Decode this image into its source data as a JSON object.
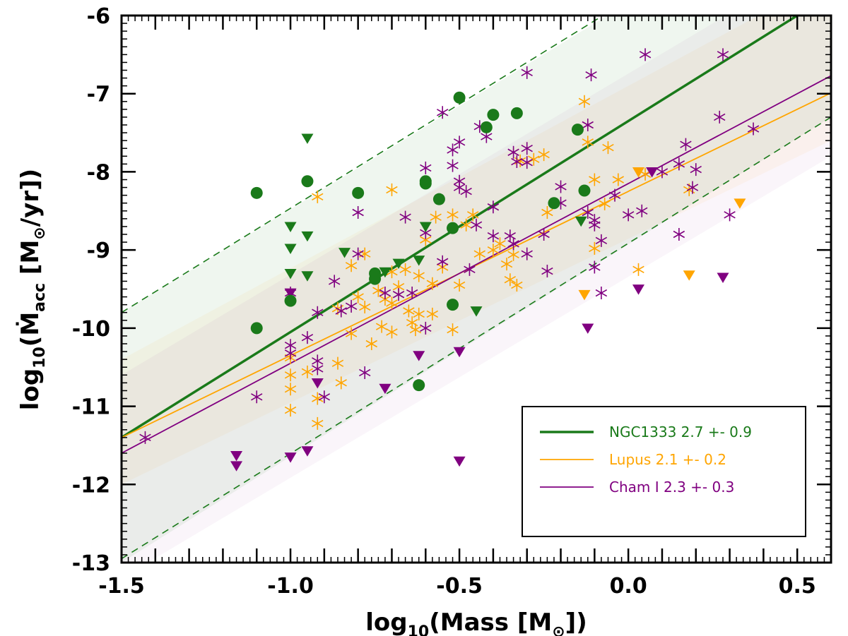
{
  "chart_data": {
    "type": "scatter",
    "title": "",
    "xlabel": {
      "prefix": "log",
      "sub": "10",
      "main": "(Mass [M",
      "sun": "⊙",
      "close": "])"
    },
    "ylabel": {
      "prefix": "log",
      "sub": "10",
      "main": "(Ṁ",
      "accsub": "acc",
      "unit": " [M",
      "sun": "⊙",
      "close": "/yr])"
    },
    "xlim": [
      -1.5,
      0.6
    ],
    "ylim": [
      -13,
      -6
    ],
    "xticks": [
      {
        "v": -1.5,
        "label": "-1.5"
      },
      {
        "v": -1.0,
        "label": "-1.0"
      },
      {
        "v": -0.5,
        "label": "-0.5"
      },
      {
        "v": 0.0,
        "label": "0.0"
      },
      {
        "v": 0.5,
        "label": "0.5"
      }
    ],
    "yticks": [
      {
        "v": -6,
        "label": "-6"
      },
      {
        "v": -7,
        "label": "-7"
      },
      {
        "v": -8,
        "label": "-8"
      },
      {
        "v": -9,
        "label": "-9"
      },
      {
        "v": -10,
        "label": "-10"
      },
      {
        "v": -11,
        "label": "-11"
      },
      {
        "v": -12,
        "label": "-12"
      },
      {
        "v": -13,
        "label": "-13"
      }
    ],
    "grid": false,
    "legend_position": "lower-right",
    "colors": {
      "ngc1333": "#1a7a1a",
      "lupus": "#ffa500",
      "cham": "#800080"
    },
    "bands": [
      {
        "color": "#1a7a1a",
        "opacity": 0.07,
        "lower": [
          -1.5,
          -13.0
        ],
        "lower_end": [
          0.6,
          -7.3
        ],
        "upper": [
          0.6,
          -4.25
        ],
        "upper_start": [
          -1.5,
          -9.8
        ]
      },
      {
        "color": "#ffa500",
        "opacity": 0.05,
        "lower": [
          -1.5,
          -12.0
        ],
        "lower_end": [
          0.6,
          -7.6
        ],
        "upper": [
          0.6,
          -5.5
        ],
        "upper_start": [
          -1.5,
          -10.4
        ]
      },
      {
        "color": "#800080",
        "opacity": 0.04,
        "lower": [
          -1.5,
          -13.2
        ],
        "lower_end": [
          0.6,
          -7.8
        ],
        "upper": [
          0.6,
          -5.2
        ],
        "upper_start": [
          -1.5,
          -10.6
        ]
      }
    ],
    "dashed_lines": [
      {
        "x1": -1.5,
        "y1": -9.8,
        "x2": 0.6,
        "y2": -4.2
      },
      {
        "x1": -1.5,
        "y1": -12.95,
        "x2": 0.6,
        "y2": -7.3
      }
    ],
    "fit_lines": [
      {
        "name": "NGC1333",
        "color": "#1a7a1a",
        "width": 3.5,
        "x1": -1.5,
        "y1": -11.4,
        "x2": 0.6,
        "y2": -5.73
      },
      {
        "name": "Lupus",
        "color": "#ffa500",
        "width": 1.8,
        "x1": -1.5,
        "y1": -11.4,
        "x2": 0.6,
        "y2": -6.99
      },
      {
        "name": "Cham I",
        "color": "#800080",
        "width": 1.8,
        "x1": -1.5,
        "y1": -11.6,
        "x2": 0.6,
        "y2": -6.77
      }
    ],
    "legend": [
      {
        "label": "NGC1333  2.7 +- 0.9",
        "color": "#1a7a1a",
        "width": 3.5
      },
      {
        "label": "Lupus  2.1 +- 0.2",
        "color": "#ffa500",
        "width": 1.8
      },
      {
        "label": "Cham I  2.3 +- 0.3",
        "color": "#800080",
        "width": 1.8
      }
    ],
    "series": [
      {
        "group": "ngc1333",
        "marker": "circle",
        "points": [
          [
            -1.1,
            -8.27
          ],
          [
            -1.1,
            -10.0
          ],
          [
            -1.0,
            -9.65
          ],
          [
            -0.95,
            -8.12
          ],
          [
            -0.8,
            -8.27
          ],
          [
            -0.75,
            -9.3
          ],
          [
            -0.75,
            -9.37
          ],
          [
            -0.62,
            -10.73
          ],
          [
            -0.6,
            -8.12
          ],
          [
            -0.6,
            -8.15
          ],
          [
            -0.56,
            -8.35
          ],
          [
            -0.52,
            -8.72
          ],
          [
            -0.52,
            -9.7
          ],
          [
            -0.5,
            -7.05
          ],
          [
            -0.42,
            -7.43
          ],
          [
            -0.4,
            -7.27
          ],
          [
            -0.33,
            -7.25
          ],
          [
            -0.22,
            -8.4
          ],
          [
            -0.15,
            -7.46
          ],
          [
            -0.13,
            -8.24
          ]
        ]
      },
      {
        "group": "ngc1333",
        "marker": "triangle",
        "points": [
          [
            -1.0,
            -8.7
          ],
          [
            -1.0,
            -8.98
          ],
          [
            -1.0,
            -9.3
          ],
          [
            -0.95,
            -7.57
          ],
          [
            -0.95,
            -8.82
          ],
          [
            -0.95,
            -9.33
          ],
          [
            -0.84,
            -9.03
          ],
          [
            -0.72,
            -9.28
          ],
          [
            -0.68,
            -9.17
          ],
          [
            -0.62,
            -9.13
          ],
          [
            -0.6,
            -8.7
          ],
          [
            -0.45,
            -9.78
          ],
          [
            -0.14,
            -8.63
          ]
        ]
      },
      {
        "group": "lupus",
        "marker": "star",
        "points": [
          [
            -1.0,
            -10.38
          ],
          [
            -1.0,
            -10.6
          ],
          [
            -1.0,
            -10.78
          ],
          [
            -1.0,
            -11.05
          ],
          [
            -0.95,
            -10.56
          ],
          [
            -0.92,
            -8.32
          ],
          [
            -0.92,
            -10.9
          ],
          [
            -0.92,
            -11.22
          ],
          [
            -0.86,
            -9.75
          ],
          [
            -0.86,
            -10.45
          ],
          [
            -0.85,
            -10.7
          ],
          [
            -0.82,
            -9.2
          ],
          [
            -0.82,
            -10.07
          ],
          [
            -0.8,
            -9.6
          ],
          [
            -0.78,
            -9.05
          ],
          [
            -0.78,
            -9.73
          ],
          [
            -0.76,
            -10.2
          ],
          [
            -0.74,
            -9.52
          ],
          [
            -0.73,
            -9.98
          ],
          [
            -0.72,
            -9.63
          ],
          [
            -0.7,
            -8.23
          ],
          [
            -0.7,
            -9.28
          ],
          [
            -0.7,
            -9.68
          ],
          [
            -0.7,
            -10.05
          ],
          [
            -0.68,
            -9.47
          ],
          [
            -0.66,
            -9.25
          ],
          [
            -0.65,
            -9.78
          ],
          [
            -0.64,
            -9.93
          ],
          [
            -0.63,
            -10.02
          ],
          [
            -0.62,
            -9.82
          ],
          [
            -0.62,
            -9.33
          ],
          [
            -0.6,
            -8.87
          ],
          [
            -0.58,
            -9.43
          ],
          [
            -0.58,
            -9.82
          ],
          [
            -0.57,
            -8.58
          ],
          [
            -0.55,
            -9.22
          ],
          [
            -0.52,
            -8.55
          ],
          [
            -0.52,
            -10.02
          ],
          [
            -0.5,
            -9.45
          ],
          [
            -0.48,
            -8.68
          ],
          [
            -0.46,
            -8.55
          ],
          [
            -0.44,
            -9.05
          ],
          [
            -0.4,
            -9.0
          ],
          [
            -0.38,
            -8.92
          ],
          [
            -0.36,
            -9.18
          ],
          [
            -0.35,
            -9.38
          ],
          [
            -0.34,
            -9.06
          ],
          [
            -0.33,
            -9.45
          ],
          [
            -0.32,
            -7.86
          ],
          [
            -0.28,
            -7.84
          ],
          [
            -0.25,
            -7.78
          ],
          [
            -0.24,
            -8.52
          ],
          [
            -0.13,
            -7.1
          ],
          [
            -0.12,
            -7.62
          ],
          [
            -0.1,
            -8.1
          ],
          [
            -0.1,
            -8.98
          ],
          [
            -0.07,
            -8.41
          ],
          [
            -0.06,
            -7.69
          ],
          [
            -0.03,
            -8.1
          ],
          [
            0.03,
            -9.25
          ],
          [
            0.05,
            -8.03
          ],
          [
            0.18,
            -8.23
          ]
        ]
      },
      {
        "group": "lupus",
        "marker": "triangle",
        "points": [
          [
            -0.13,
            -9.57
          ],
          [
            0.03,
            -8.0
          ],
          [
            0.18,
            -9.32
          ],
          [
            0.33,
            -8.4
          ]
        ]
      },
      {
        "group": "cham",
        "marker": "star",
        "points": [
          [
            -1.43,
            -11.4
          ],
          [
            -1.1,
            -10.88
          ],
          [
            -1.0,
            -9.55
          ],
          [
            -1.0,
            -10.22
          ],
          [
            -1.0,
            -10.32
          ],
          [
            -0.95,
            -10.12
          ],
          [
            -0.92,
            -9.8
          ],
          [
            -0.92,
            -10.42
          ],
          [
            -0.92,
            -10.52
          ],
          [
            -0.9,
            -10.88
          ],
          [
            -0.87,
            -9.4
          ],
          [
            -0.85,
            -9.78
          ],
          [
            -0.82,
            -9.72
          ],
          [
            -0.8,
            -8.52
          ],
          [
            -0.8,
            -9.05
          ],
          [
            -0.78,
            -10.57
          ],
          [
            -0.72,
            -9.55
          ],
          [
            -0.68,
            -9.57
          ],
          [
            -0.66,
            -8.58
          ],
          [
            -0.64,
            -9.55
          ],
          [
            -0.6,
            -7.95
          ],
          [
            -0.6,
            -8.78
          ],
          [
            -0.6,
            -10.0
          ],
          [
            -0.55,
            -7.24
          ],
          [
            -0.55,
            -9.15
          ],
          [
            -0.52,
            -7.72
          ],
          [
            -0.52,
            -7.92
          ],
          [
            -0.5,
            -7.62
          ],
          [
            -0.5,
            -8.12
          ],
          [
            -0.5,
            -8.2
          ],
          [
            -0.48,
            -8.25
          ],
          [
            -0.47,
            -9.25
          ],
          [
            -0.45,
            -8.68
          ],
          [
            -0.44,
            -7.42
          ],
          [
            -0.42,
            -7.55
          ],
          [
            -0.4,
            -8.45
          ],
          [
            -0.4,
            -8.82
          ],
          [
            -0.35,
            -8.82
          ],
          [
            -0.34,
            -7.75
          ],
          [
            -0.34,
            -8.92
          ],
          [
            -0.33,
            -7.87
          ],
          [
            -0.3,
            -6.73
          ],
          [
            -0.3,
            -7.7
          ],
          [
            -0.3,
            -7.88
          ],
          [
            -0.3,
            -9.05
          ],
          [
            -0.25,
            -8.8
          ],
          [
            -0.24,
            -9.27
          ],
          [
            -0.2,
            -8.19
          ],
          [
            -0.2,
            -8.4
          ],
          [
            -0.12,
            -7.4
          ],
          [
            -0.12,
            -8.52
          ],
          [
            -0.11,
            -6.76
          ],
          [
            -0.1,
            -8.62
          ],
          [
            -0.1,
            -8.68
          ],
          [
            -0.1,
            -9.22
          ],
          [
            -0.08,
            -8.88
          ],
          [
            -0.08,
            -9.55
          ],
          [
            -0.04,
            -8.3
          ],
          [
            0.0,
            -8.55
          ],
          [
            0.04,
            -8.5
          ],
          [
            0.05,
            -6.5
          ],
          [
            0.1,
            -8.0
          ],
          [
            0.15,
            -8.8
          ],
          [
            0.15,
            -7.9
          ],
          [
            0.17,
            -7.65
          ],
          [
            0.19,
            -8.2
          ],
          [
            0.2,
            -7.97
          ],
          [
            0.27,
            -7.3
          ],
          [
            0.28,
            -6.5
          ],
          [
            0.3,
            -8.55
          ],
          [
            0.37,
            -7.45
          ]
        ]
      },
      {
        "group": "cham",
        "marker": "triangle",
        "points": [
          [
            -1.16,
            -11.63
          ],
          [
            -1.16,
            -11.76
          ],
          [
            -1.0,
            -9.55
          ],
          [
            -1.0,
            -11.65
          ],
          [
            -0.95,
            -11.57
          ],
          [
            -0.92,
            -10.7
          ],
          [
            -0.72,
            -10.77
          ],
          [
            -0.62,
            -10.35
          ],
          [
            -0.5,
            -10.3
          ],
          [
            -0.5,
            -11.7
          ],
          [
            -0.12,
            -10.0
          ],
          [
            0.03,
            -9.5
          ],
          [
            0.07,
            -8.0
          ],
          [
            0.28,
            -9.35
          ]
        ]
      }
    ]
  }
}
